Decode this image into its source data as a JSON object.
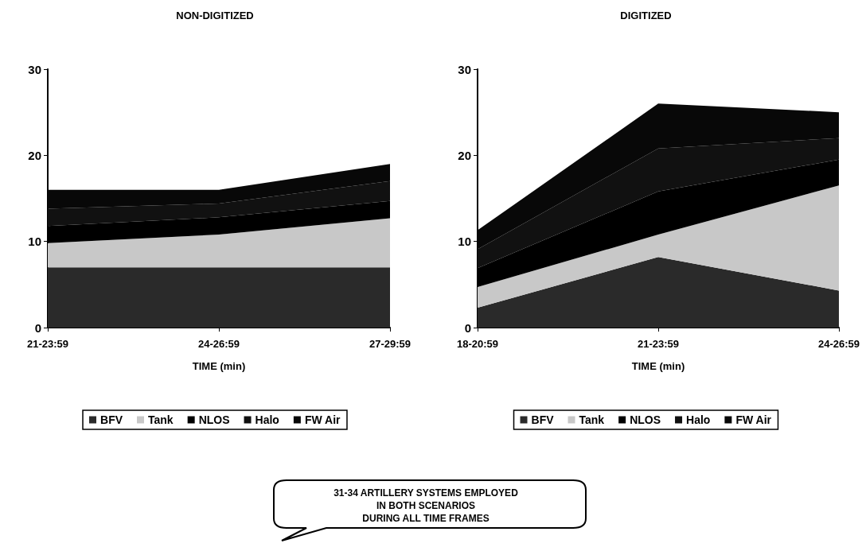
{
  "chart_data": [
    {
      "type": "area",
      "title": "NON-DIGITIZED",
      "xlabel": "TIME (min)",
      "categories": [
        "21-23:59",
        "24-26:59",
        "27-29:59"
      ],
      "stacked": true,
      "legend": "bottom",
      "ylim": [
        0,
        30
      ],
      "yticks": [
        0,
        10,
        20,
        30
      ],
      "series": [
        {
          "name": "BFV",
          "color": "#2a2a2a",
          "values": [
            7,
            7,
            7
          ]
        },
        {
          "name": "Tank",
          "color": "#c8c8c8",
          "values": [
            2.8,
            3.8,
            5.7
          ]
        },
        {
          "name": "NLOS",
          "color": "#000000",
          "values": [
            2,
            2,
            2
          ]
        },
        {
          "name": "Halo",
          "color": "#111111",
          "values": [
            2,
            1.6,
            2.3
          ]
        },
        {
          "name": "FW Air",
          "color": "#080808",
          "values": [
            2.2,
            1.6,
            2
          ]
        }
      ]
    },
    {
      "type": "area",
      "title": "DIGITIZED",
      "xlabel": "TIME (min)",
      "categories": [
        "18-20:59",
        "21-23:59",
        "24-26:59"
      ],
      "stacked": true,
      "legend": "bottom",
      "ylim": [
        0,
        30
      ],
      "yticks": [
        0,
        10,
        20,
        30
      ],
      "annotations": [
        "31-34 ARTILLERY SYSTEMS EMPLOYED\nIN BOTH SCENARIOS\nDURING ALL TIME FRAMES"
      ],
      "series": [
        {
          "name": "BFV",
          "color": "#2a2a2a",
          "values": [
            2.3,
            8.2,
            4.3
          ]
        },
        {
          "name": "Tank",
          "color": "#c8c8c8",
          "values": [
            2.4,
            2.6,
            12.2
          ]
        },
        {
          "name": "NLOS",
          "color": "#000000",
          "values": [
            2.2,
            5,
            3
          ]
        },
        {
          "name": "Halo",
          "color": "#111111",
          "values": [
            2.2,
            5,
            2.5
          ]
        },
        {
          "name": "FW Air",
          "color": "#080808",
          "values": [
            2.2,
            5.2,
            3
          ]
        }
      ]
    }
  ]
}
